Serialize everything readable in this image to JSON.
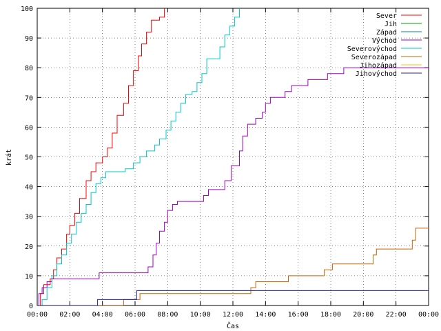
{
  "chart_data": {
    "type": "line",
    "title": "",
    "xlabel": "Čas",
    "ylabel": "krát",
    "xlim": [
      0,
      24
    ],
    "ylim": [
      0,
      100
    ],
    "x_ticks": [
      "00:00",
      "02:00",
      "04:00",
      "06:00",
      "08:00",
      "10:00",
      "12:00",
      "14:00",
      "16:00",
      "18:00",
      "20:00",
      "22:00",
      "00:00"
    ],
    "y_ticks": [
      0,
      10,
      20,
      30,
      40,
      50,
      60,
      70,
      80,
      90,
      100
    ],
    "grid": true,
    "legend_position": "top-right",
    "series": [
      {
        "name": "Sever",
        "color": "#ff0000",
        "points": [
          [
            0,
            0
          ],
          [
            0.2,
            4
          ],
          [
            0.4,
            7
          ],
          [
            0.8,
            9
          ],
          [
            1.0,
            12
          ],
          [
            1.2,
            16
          ],
          [
            1.5,
            19
          ],
          [
            1.8,
            24
          ],
          [
            2.0,
            27
          ],
          [
            2.3,
            31
          ],
          [
            2.6,
            36
          ],
          [
            3.0,
            42
          ],
          [
            3.3,
            45
          ],
          [
            3.6,
            48
          ],
          [
            4.0,
            50
          ],
          [
            4.3,
            53
          ],
          [
            4.6,
            58
          ],
          [
            4.9,
            64
          ],
          [
            5.3,
            68
          ],
          [
            5.6,
            74
          ],
          [
            5.9,
            79
          ],
          [
            6.2,
            84
          ],
          [
            6.4,
            88
          ],
          [
            6.7,
            92
          ],
          [
            7.0,
            96
          ],
          [
            7.5,
            97
          ],
          [
            7.8,
            100
          ]
        ]
      },
      {
        "name": "Jih",
        "color": "#00a000",
        "points": []
      },
      {
        "name": "Západ",
        "color": "#008b8b",
        "points": []
      },
      {
        "name": "Východ",
        "color": "#a000c8",
        "points": [
          [
            0,
            0
          ],
          [
            0.1,
            4
          ],
          [
            0.3,
            6
          ],
          [
            0.6,
            8
          ],
          [
            0.9,
            9
          ],
          [
            2.5,
            9
          ],
          [
            3.8,
            11
          ],
          [
            6.4,
            11
          ],
          [
            6.8,
            13
          ],
          [
            7.1,
            17
          ],
          [
            7.3,
            21
          ],
          [
            7.5,
            25
          ],
          [
            7.8,
            28
          ],
          [
            8.0,
            32
          ],
          [
            8.3,
            34
          ],
          [
            8.6,
            35
          ],
          [
            10.0,
            35
          ],
          [
            10.2,
            37
          ],
          [
            10.5,
            39
          ],
          [
            11.0,
            39
          ],
          [
            11.5,
            42
          ],
          [
            11.9,
            47
          ],
          [
            12.2,
            47
          ],
          [
            12.4,
            52
          ],
          [
            12.6,
            57
          ],
          [
            12.9,
            61
          ],
          [
            13.4,
            63
          ],
          [
            13.8,
            65
          ],
          [
            14.0,
            68
          ],
          [
            14.3,
            70
          ],
          [
            14.8,
            70
          ],
          [
            15.2,
            72
          ],
          [
            15.6,
            74
          ],
          [
            16.2,
            74
          ],
          [
            16.6,
            76
          ],
          [
            17.4,
            76
          ],
          [
            17.8,
            78
          ],
          [
            18.4,
            78
          ],
          [
            18.8,
            80
          ],
          [
            24.0,
            80
          ]
        ]
      },
      {
        "name": "Severovýchod",
        "color": "#00c8c8",
        "points": [
          [
            0,
            0
          ],
          [
            0.3,
            2
          ],
          [
            0.6,
            6
          ],
          [
            0.9,
            10
          ],
          [
            1.2,
            14
          ],
          [
            1.5,
            17
          ],
          [
            1.8,
            21
          ],
          [
            2.1,
            24
          ],
          [
            2.4,
            28
          ],
          [
            2.7,
            31
          ],
          [
            3.0,
            34
          ],
          [
            3.3,
            38
          ],
          [
            3.6,
            41
          ],
          [
            3.9,
            43
          ],
          [
            4.2,
            45
          ],
          [
            5.0,
            45
          ],
          [
            5.4,
            46
          ],
          [
            5.9,
            48
          ],
          [
            6.3,
            50
          ],
          [
            6.7,
            52
          ],
          [
            7.2,
            54
          ],
          [
            7.5,
            56
          ],
          [
            7.9,
            59
          ],
          [
            8.2,
            62
          ],
          [
            8.5,
            65
          ],
          [
            8.8,
            68
          ],
          [
            9.1,
            71
          ],
          [
            9.5,
            72
          ],
          [
            9.8,
            75
          ],
          [
            10.1,
            78
          ],
          [
            10.4,
            83
          ],
          [
            10.9,
            83
          ],
          [
            11.2,
            87
          ],
          [
            11.5,
            91
          ],
          [
            11.8,
            94
          ],
          [
            12.1,
            97
          ],
          [
            12.4,
            100
          ]
        ]
      },
      {
        "name": "Severozápad",
        "color": "#c86400",
        "points": [
          [
            0,
            0
          ],
          [
            5.0,
            0
          ],
          [
            5.3,
            2
          ],
          [
            6.0,
            2
          ],
          [
            6.3,
            4
          ],
          [
            12.8,
            4
          ],
          [
            13.1,
            6
          ],
          [
            13.4,
            8
          ],
          [
            15.1,
            8
          ],
          [
            15.4,
            10
          ],
          [
            17.3,
            10
          ],
          [
            17.6,
            12
          ],
          [
            17.9,
            12
          ],
          [
            18.1,
            14
          ],
          [
            20.3,
            14
          ],
          [
            20.6,
            17
          ],
          [
            20.8,
            19
          ],
          [
            22.8,
            19
          ],
          [
            23.0,
            22
          ],
          [
            23.2,
            26
          ],
          [
            24.0,
            26
          ]
        ]
      },
      {
        "name": "Jihozápad",
        "color": "#ffc000",
        "points": []
      },
      {
        "name": "Jihovýchod",
        "color": "#2020a0",
        "points": [
          [
            0,
            0
          ],
          [
            3.6,
            0
          ],
          [
            3.7,
            2
          ],
          [
            6.0,
            2
          ],
          [
            6.1,
            5
          ],
          [
            24.0,
            5
          ]
        ]
      }
    ]
  }
}
